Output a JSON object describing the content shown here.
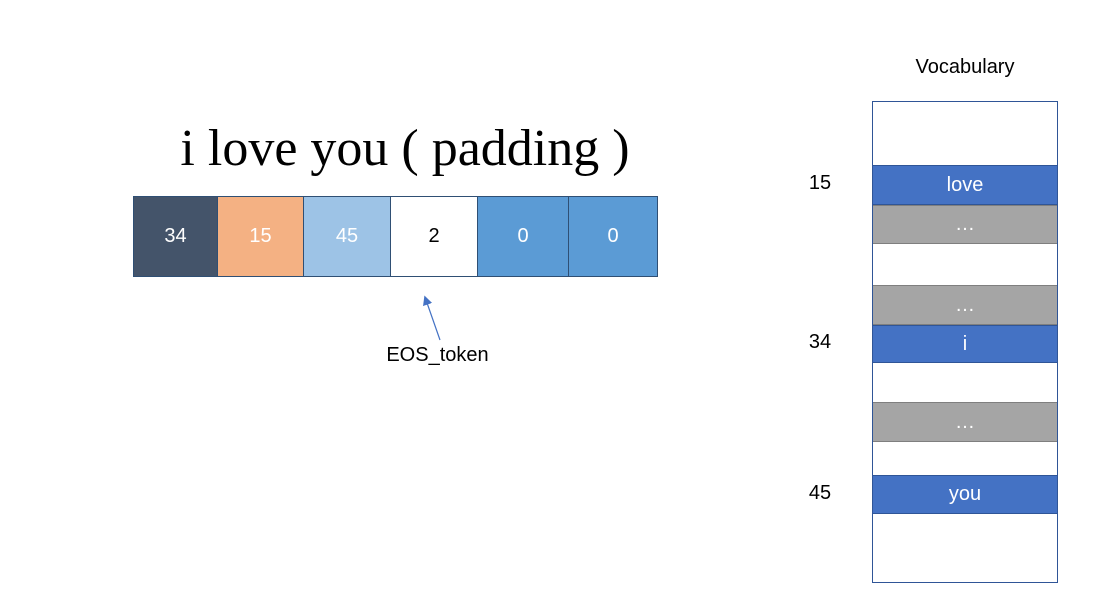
{
  "sentence": "i love you ( padding )",
  "tokens": [
    {
      "label": "34",
      "bg": "#44546a",
      "fg": "#ffffff"
    },
    {
      "label": "15",
      "bg": "#f4b183",
      "fg": "#ffffff"
    },
    {
      "label": "45",
      "bg": "#9dc3e6",
      "fg": "#ffffff"
    },
    {
      "label": "2",
      "bg": "#ffffff",
      "fg": "#000000"
    },
    {
      "label": "0",
      "bg": "#5b9bd5",
      "fg": "#ffffff"
    },
    {
      "label": "0",
      "bg": "#5b9bd5",
      "fg": "#ffffff"
    }
  ],
  "eos_label": "EOS_token",
  "vocabulary": {
    "title": "Vocabulary",
    "rows": [
      {
        "label": "",
        "kind": "empty"
      },
      {
        "label": "love",
        "kind": "word",
        "index": "15"
      },
      {
        "label": "…",
        "kind": "gap"
      },
      {
        "label": "",
        "kind": "empty"
      },
      {
        "label": "…",
        "kind": "gap"
      },
      {
        "label": "i",
        "kind": "word",
        "index": "34"
      },
      {
        "label": "",
        "kind": "empty"
      },
      {
        "label": "…",
        "kind": "gap"
      },
      {
        "label": "",
        "kind": "empty"
      },
      {
        "label": "you",
        "kind": "word",
        "index": "45"
      },
      {
        "label": "",
        "kind": "empty"
      }
    ]
  },
  "colors": {
    "word_row": "#4472c4",
    "gap_row": "#a5a5a5",
    "arrow": "#4472c4"
  }
}
